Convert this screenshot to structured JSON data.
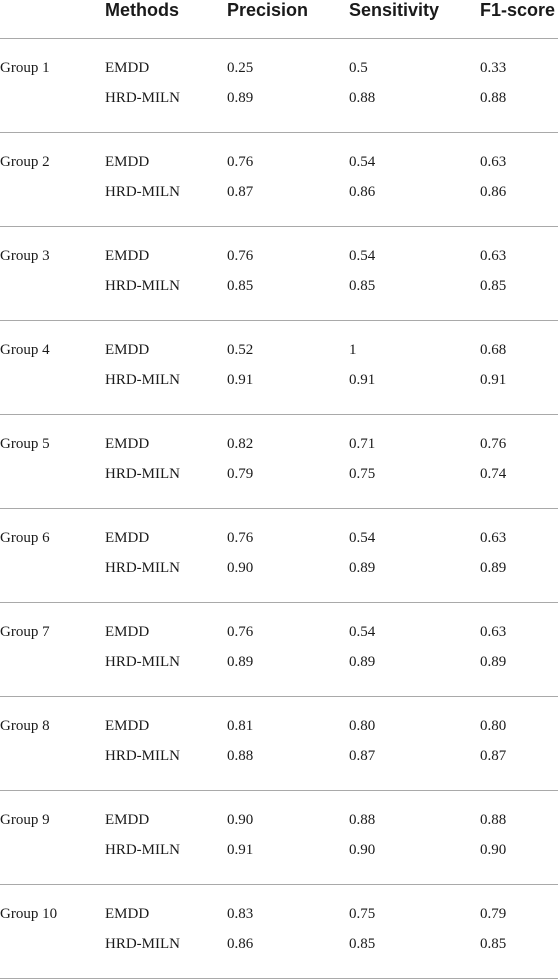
{
  "table": {
    "headers": {
      "group": "",
      "methods": "Methods",
      "precision": "Precision",
      "sensitivity": "Sensitivity",
      "f1": "F1-score"
    },
    "groups": [
      {
        "name": "Group 1",
        "rows": [
          {
            "method": "EMDD",
            "precision": "0.25",
            "sensitivity": "0.5",
            "f1": "0.33"
          },
          {
            "method": "HRD-MILN",
            "precision": "0.89",
            "sensitivity": "0.88",
            "f1": "0.88"
          }
        ]
      },
      {
        "name": "Group 2",
        "rows": [
          {
            "method": "EMDD",
            "precision": "0.76",
            "sensitivity": "0.54",
            "f1": "0.63"
          },
          {
            "method": "HRD-MILN",
            "precision": "0.87",
            "sensitivity": "0.86",
            "f1": "0.86"
          }
        ]
      },
      {
        "name": "Group 3",
        "rows": [
          {
            "method": "EMDD",
            "precision": "0.76",
            "sensitivity": "0.54",
            "f1": "0.63"
          },
          {
            "method": "HRD-MILN",
            "precision": "0.85",
            "sensitivity": "0.85",
            "f1": "0.85"
          }
        ]
      },
      {
        "name": "Group 4",
        "rows": [
          {
            "method": "EMDD",
            "precision": "0.52",
            "sensitivity": "1",
            "f1": "0.68"
          },
          {
            "method": "HRD-MILN",
            "precision": "0.91",
            "sensitivity": "0.91",
            "f1": "0.91"
          }
        ]
      },
      {
        "name": "Group 5",
        "rows": [
          {
            "method": "EMDD",
            "precision": "0.82",
            "sensitivity": "0.71",
            "f1": "0.76"
          },
          {
            "method": "HRD-MILN",
            "precision": "0.79",
            "sensitivity": "0.75",
            "f1": "0.74"
          }
        ]
      },
      {
        "name": "Group 6",
        "rows": [
          {
            "method": "EMDD",
            "precision": "0.76",
            "sensitivity": "0.54",
            "f1": "0.63"
          },
          {
            "method": "HRD-MILN",
            "precision": "0.90",
            "sensitivity": "0.89",
            "f1": "0.89"
          }
        ]
      },
      {
        "name": "Group 7",
        "rows": [
          {
            "method": "EMDD",
            "precision": "0.76",
            "sensitivity": "0.54",
            "f1": "0.63"
          },
          {
            "method": "HRD-MILN",
            "precision": "0.89",
            "sensitivity": "0.89",
            "f1": "0.89"
          }
        ]
      },
      {
        "name": "Group 8",
        "rows": [
          {
            "method": "EMDD",
            "precision": "0.81",
            "sensitivity": "0.80",
            "f1": "0.80"
          },
          {
            "method": "HRD-MILN",
            "precision": "0.88",
            "sensitivity": "0.87",
            "f1": "0.87"
          }
        ]
      },
      {
        "name": "Group 9",
        "rows": [
          {
            "method": "EMDD",
            "precision": "0.90",
            "sensitivity": "0.88",
            "f1": "0.88"
          },
          {
            "method": "HRD-MILN",
            "precision": "0.91",
            "sensitivity": "0.90",
            "f1": "0.90"
          }
        ]
      },
      {
        "name": "Group 10",
        "rows": [
          {
            "method": "EMDD",
            "precision": "0.83",
            "sensitivity": "0.75",
            "f1": "0.79"
          },
          {
            "method": "HRD-MILN",
            "precision": "0.86",
            "sensitivity": "0.85",
            "f1": "0.85"
          }
        ]
      }
    ]
  }
}
